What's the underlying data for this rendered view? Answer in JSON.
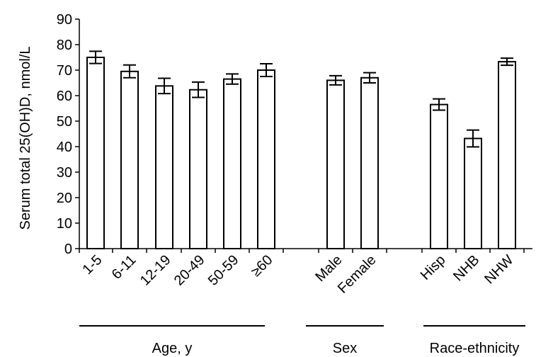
{
  "chart_data": {
    "type": "bar",
    "ylabel": "Serum total 25(OH)D, nmol/L",
    "ylim": [
      0,
      90
    ],
    "yticks": [
      0,
      10,
      20,
      30,
      40,
      50,
      60,
      70,
      80,
      90
    ],
    "grid": false,
    "error_bars": true,
    "bar_fill": "#ffffff",
    "bar_stroke": "#000000",
    "categories": [
      "1-5",
      "6-11",
      "12-19",
      "20-49",
      "50-59",
      "≥60",
      "Male",
      "Female",
      "Hisp",
      "NHB",
      "NHW"
    ],
    "values": [
      75,
      69.5,
      63.8,
      62.3,
      66.5,
      70,
      66,
      67,
      56.5,
      43.2,
      73.3
    ],
    "errors": [
      2.4,
      2.5,
      3,
      3,
      2,
      2.5,
      1.8,
      2,
      2.2,
      3.3,
      1.4
    ],
    "groups": [
      {
        "label": "Age, y",
        "categories": [
          "1-5",
          "6-11",
          "12-19",
          "20-49",
          "50-59",
          "≥60"
        ]
      },
      {
        "label": "Sex",
        "categories": [
          "Male",
          "Female"
        ]
      },
      {
        "label": "Race-ethnicity",
        "categories": [
          "Hisp",
          "NHB",
          "NHW"
        ]
      }
    ]
  }
}
